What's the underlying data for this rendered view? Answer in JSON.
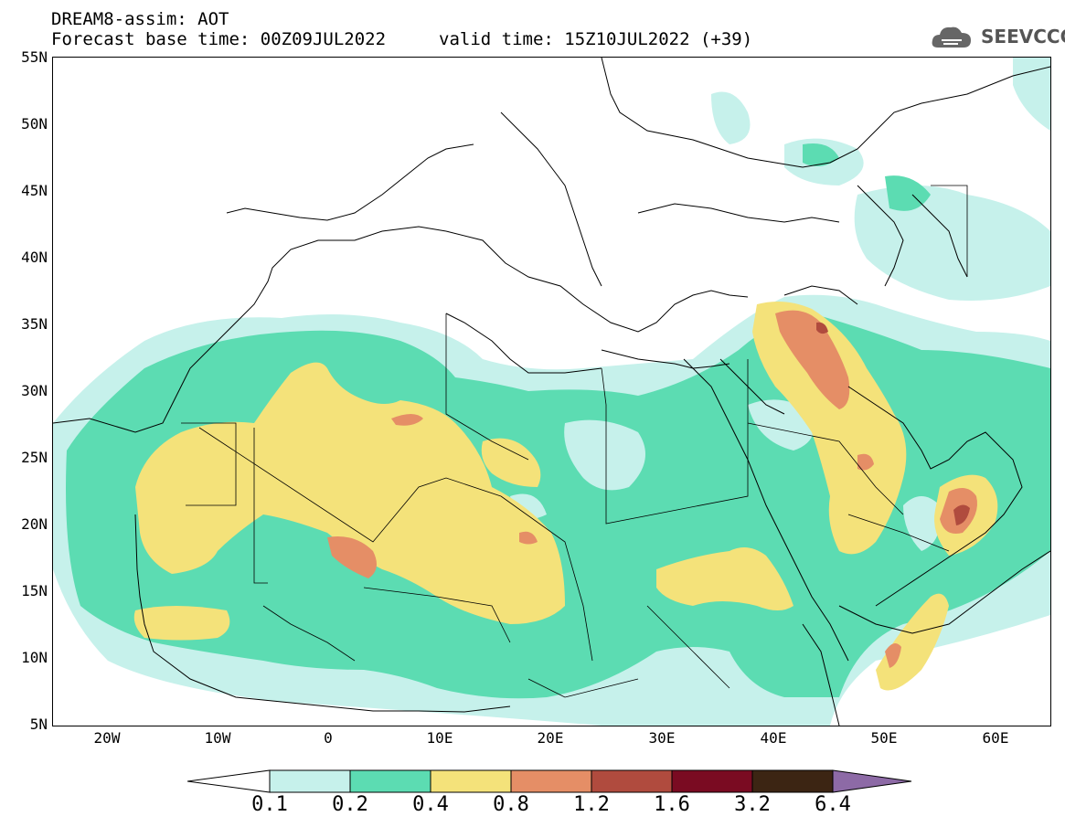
{
  "header": {
    "line1": "DREAM8-assim: AOT",
    "line2_left": "Forecast base time: 00Z09JUL2022",
    "line2_right": "valid time: 15Z10JUL2022 (+39)",
    "logo_text": "SEEVCCC"
  },
  "map": {
    "lat_labels": [
      "55N",
      "50N",
      "45N",
      "40N",
      "35N",
      "30N",
      "25N",
      "20N",
      "15N",
      "10N",
      "5N"
    ],
    "lon_labels": [
      "20W",
      "10W",
      "0",
      "10E",
      "20E",
      "30E",
      "40E",
      "50E",
      "60E"
    ]
  },
  "colorbar": {
    "labels": [
      "0.1",
      "0.2",
      "0.4",
      "0.8",
      "1.2",
      "1.6",
      "3.2",
      "6.4"
    ],
    "colors": [
      "#c6f1eb",
      "#5cdcb2",
      "#f4e27a",
      "#e58e66",
      "#b04b3e",
      "#7a0b22",
      "#3c2513",
      "#8d6aa6"
    ]
  },
  "icons": [
    "seevccc-cloud-logo-icon"
  ]
}
